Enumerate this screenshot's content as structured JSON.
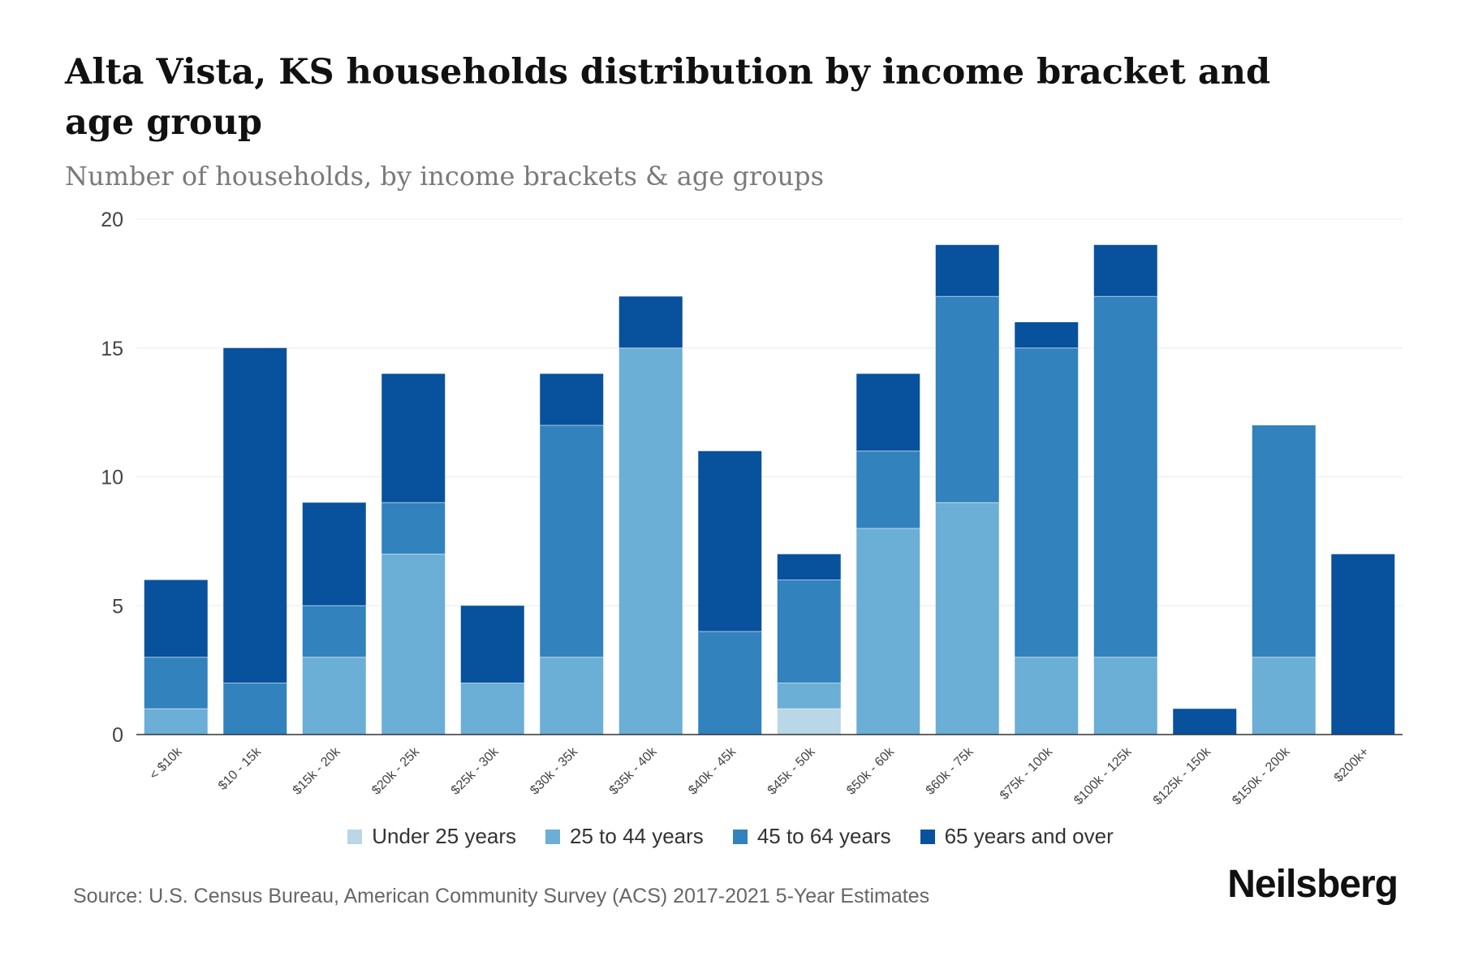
{
  "header": {
    "title": "Alta Vista, KS households distribution by income bracket and age group",
    "subtitle": "Number of households, by income brackets & age groups"
  },
  "footer": {
    "source": "Source: U.S. Census Bureau, American Community Survey (ACS) 2017-2021 5-Year Estimates",
    "brand": "Neilsberg"
  },
  "chart_data": {
    "type": "bar",
    "stacked": true,
    "title": "Alta Vista, KS households distribution by income bracket and age group",
    "subtitle": "Number of households, by income brackets & age groups",
    "xlabel": "",
    "ylabel": "",
    "ylim": [
      0,
      20
    ],
    "yticks": [
      0,
      5,
      10,
      15,
      20
    ],
    "grid": true,
    "legend_position": "bottom",
    "categories": [
      "< $10k",
      "$10 - 15k",
      "$15k - 20k",
      "$20k - 25k",
      "$25k - 30k",
      "$30k - 35k",
      "$35k - 40k",
      "$40k - 45k",
      "$45k - 50k",
      "$50k - 60k",
      "$60k - 75k",
      "$75k - 100k",
      "$100k - 125k",
      "$125k - 150k",
      "$150k - 200k",
      "$200k+"
    ],
    "series": [
      {
        "name": "Under 25 years",
        "color": "#b9d7e6",
        "values": [
          0,
          0,
          0,
          0,
          0,
          0,
          0,
          0,
          1,
          0,
          0,
          0,
          0,
          0,
          0,
          0
        ]
      },
      {
        "name": "25 to 44 years",
        "color": "#6baed6",
        "values": [
          1,
          0,
          3,
          7,
          2,
          3,
          15,
          0,
          1,
          8,
          9,
          3,
          3,
          0,
          3,
          0
        ]
      },
      {
        "name": "45 to 64 years",
        "color": "#3182bd",
        "values": [
          2,
          2,
          2,
          2,
          0,
          9,
          0,
          4,
          4,
          3,
          8,
          12,
          14,
          0,
          9,
          0
        ]
      },
      {
        "name": "65 years and over",
        "color": "#08519c",
        "values": [
          3,
          13,
          4,
          5,
          3,
          2,
          2,
          7,
          1,
          3,
          2,
          1,
          2,
          1,
          0,
          7
        ]
      }
    ]
  }
}
